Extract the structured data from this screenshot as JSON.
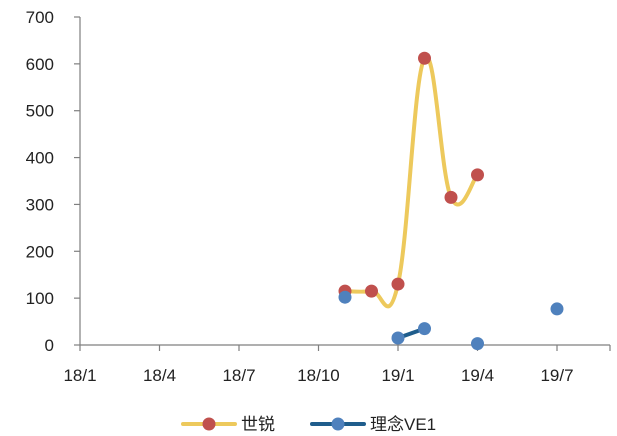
{
  "chart_data": {
    "type": "line",
    "title": "",
    "xlabel": "",
    "ylabel": "",
    "ylim": [
      0,
      700
    ],
    "yticks": [
      0,
      100,
      200,
      300,
      400,
      500,
      600,
      700
    ],
    "xlim": [
      "2018-01",
      "2019-09"
    ],
    "xticks": [
      {
        "date": "2018-01",
        "label": "18/1"
      },
      {
        "date": "2018-04",
        "label": "18/4"
      },
      {
        "date": "2018-07",
        "label": "18/7"
      },
      {
        "date": "2018-10",
        "label": "18/10"
      },
      {
        "date": "2019-01",
        "label": "19/1"
      },
      {
        "date": "2019-04",
        "label": "19/4"
      },
      {
        "date": "2019-07",
        "label": "19/7"
      }
    ],
    "grid": false,
    "legend_position": "bottom",
    "series": [
      {
        "name": "世锐",
        "line_color": "#EDC95C",
        "marker_color": "#C0504D",
        "smooth": true,
        "segments": [
          [
            {
              "date": "2018-11",
              "value": 115
            },
            {
              "date": "2018-12",
              "value": 115
            },
            {
              "date": "2019-01",
              "value": 130
            },
            {
              "date": "2019-02",
              "value": 612
            },
            {
              "date": "2019-03",
              "value": 315
            },
            {
              "date": "2019-04",
              "value": 363
            }
          ]
        ]
      },
      {
        "name": "理念VE1",
        "line_color": "#1F5D8C",
        "marker_color": "#4F81BD",
        "smooth": false,
        "segments": [
          [
            {
              "date": "2018-11",
              "value": 102
            }
          ],
          [
            {
              "date": "2019-01",
              "value": 15
            },
            {
              "date": "2019-02",
              "value": 35
            }
          ],
          [
            {
              "date": "2019-04",
              "value": 3
            }
          ],
          [
            {
              "date": "2019-07",
              "value": 77
            }
          ]
        ]
      }
    ]
  }
}
